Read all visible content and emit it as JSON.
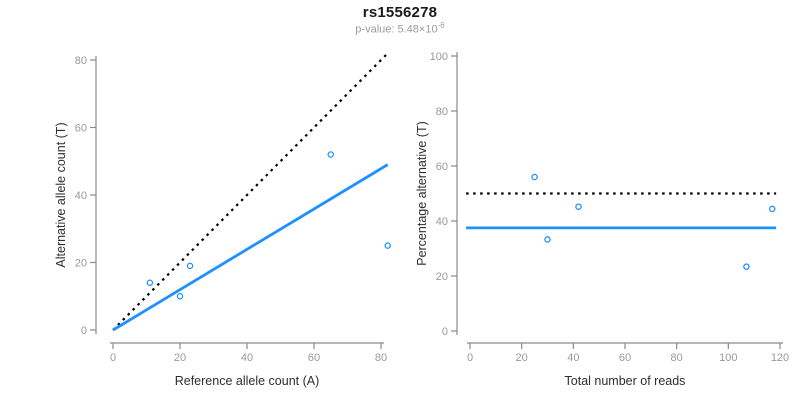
{
  "title": "rs1556278",
  "subtitle": {
    "text": "p-value: 5.48×10",
    "exponent": "-6"
  },
  "colors": {
    "accent_blue": "#1E90FF",
    "dotted_black": "#000000",
    "axis_line": "#8a8a8a",
    "tick_label": "#999999",
    "axis_title": "#2e2e2e",
    "title": "#1a1a1a",
    "subtitle": "#9a9a9a"
  },
  "chart_data": [
    {
      "type": "scatter",
      "name": "allele-counts-scatter",
      "xlabel": "Reference allele count (A)",
      "ylabel": "Alternative allele count (T)",
      "xlim": [
        0,
        82
      ],
      "ylim": [
        0,
        82
      ],
      "xticks": [
        0,
        20,
        40,
        60,
        80
      ],
      "yticks": [
        0,
        20,
        40,
        60,
        80
      ],
      "grid": false,
      "points": [
        [
          11,
          14
        ],
        [
          20,
          10
        ],
        [
          23,
          19
        ],
        [
          65,
          52
        ],
        [
          82,
          25
        ]
      ],
      "lines": [
        {
          "name": "identity-line",
          "style": "dotted",
          "color": "#000000",
          "x1": 0,
          "y1": 0,
          "x2": 82,
          "y2": 82
        },
        {
          "name": "fit-line",
          "style": "solid",
          "color": "#1E90FF",
          "x1": 0,
          "y1": 0,
          "x2": 82,
          "y2": 49
        }
      ]
    },
    {
      "type": "scatter",
      "name": "percentage-vs-reads-scatter",
      "xlabel": "Total number of reads",
      "ylabel": "Percentage alternative (T)",
      "xlim": [
        0,
        120
      ],
      "ylim": [
        0,
        100
      ],
      "xticks": [
        0,
        20,
        40,
        60,
        80,
        100,
        120
      ],
      "yticks": [
        0,
        20,
        40,
        60,
        80,
        100
      ],
      "grid": false,
      "points": [
        [
          25,
          56
        ],
        [
          30,
          33.3
        ],
        [
          42,
          45.2
        ],
        [
          107,
          23.4
        ],
        [
          117,
          44.4
        ]
      ],
      "lines": [
        {
          "name": "expected-50pct-line",
          "style": "dotted",
          "color": "#000000",
          "x1": -1.5,
          "y1": 50,
          "x2": 118.5,
          "y2": 50
        },
        {
          "name": "mean-pct-line",
          "style": "solid",
          "color": "#1E90FF",
          "x1": -1.5,
          "y1": 37.5,
          "x2": 118.5,
          "y2": 37.5
        }
      ]
    }
  ]
}
